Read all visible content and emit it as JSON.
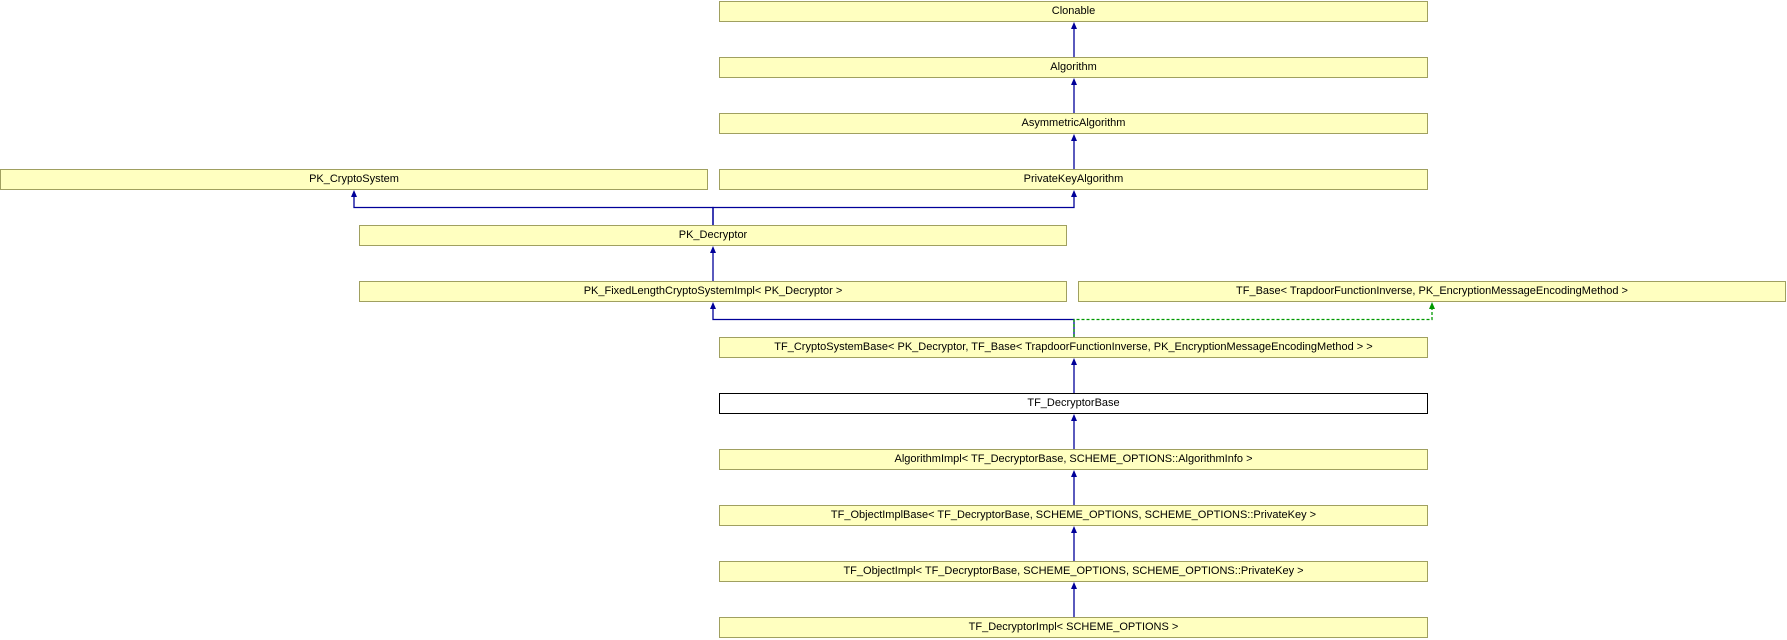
{
  "diagram": {
    "type": "inheritance-graph",
    "colors": {
      "node_fill": "#ffffc0",
      "node_border": "#a0a060",
      "current_fill": "#ffffff",
      "public_edge": "#000099",
      "protected_edge": "#009900"
    },
    "nodes": [
      {
        "id": "clonable",
        "label": "Clonable"
      },
      {
        "id": "algorithm",
        "label": "Algorithm"
      },
      {
        "id": "asymmetric",
        "label": "AsymmetricAlgorithm"
      },
      {
        "id": "pkcrypto",
        "label": "PK_CryptoSystem"
      },
      {
        "id": "privkey",
        "label": "PrivateKeyAlgorithm"
      },
      {
        "id": "pkdec",
        "label": "PK_Decryptor"
      },
      {
        "id": "pkfixed",
        "label": "PK_FixedLengthCryptoSystemImpl< PK_Decryptor >"
      },
      {
        "id": "tfbase",
        "label": "TF_Base< TrapdoorFunctionInverse, PK_EncryptionMessageEncodingMethod >"
      },
      {
        "id": "tfcsb",
        "label": "TF_CryptoSystemBase< PK_Decryptor, TF_Base< TrapdoorFunctionInverse, PK_EncryptionMessageEncodingMethod > >"
      },
      {
        "id": "tfdecbase",
        "label": "TF_DecryptorBase",
        "current": true
      },
      {
        "id": "algimpl",
        "label": "AlgorithmImpl< TF_DecryptorBase, SCHEME_OPTIONS::AlgorithmInfo >"
      },
      {
        "id": "tfoib",
        "label": "TF_ObjectImplBase< TF_DecryptorBase, SCHEME_OPTIONS, SCHEME_OPTIONS::PrivateKey >"
      },
      {
        "id": "tfoi",
        "label": "TF_ObjectImpl< TF_DecryptorBase, SCHEME_OPTIONS, SCHEME_OPTIONS::PrivateKey >"
      },
      {
        "id": "tfdecimpl",
        "label": "TF_DecryptorImpl< SCHEME_OPTIONS >"
      }
    ],
    "edges": [
      {
        "from": "algorithm",
        "to": "clonable",
        "style": "public"
      },
      {
        "from": "asymmetric",
        "to": "algorithm",
        "style": "public"
      },
      {
        "from": "privkey",
        "to": "asymmetric",
        "style": "public"
      },
      {
        "from": "pkdec",
        "to": "pkcrypto",
        "style": "public"
      },
      {
        "from": "pkdec",
        "to": "privkey",
        "style": "public"
      },
      {
        "from": "pkfixed",
        "to": "pkdec",
        "style": "public"
      },
      {
        "from": "tfcsb",
        "to": "pkfixed",
        "style": "public"
      },
      {
        "from": "tfcsb",
        "to": "tfbase",
        "style": "protected"
      },
      {
        "from": "tfdecbase",
        "to": "tfcsb",
        "style": "public"
      },
      {
        "from": "algimpl",
        "to": "tfdecbase",
        "style": "public"
      },
      {
        "from": "tfoib",
        "to": "algimpl",
        "style": "public"
      },
      {
        "from": "tfoi",
        "to": "tfoib",
        "style": "public"
      },
      {
        "from": "tfdecimpl",
        "to": "tfoi",
        "style": "public"
      }
    ]
  }
}
